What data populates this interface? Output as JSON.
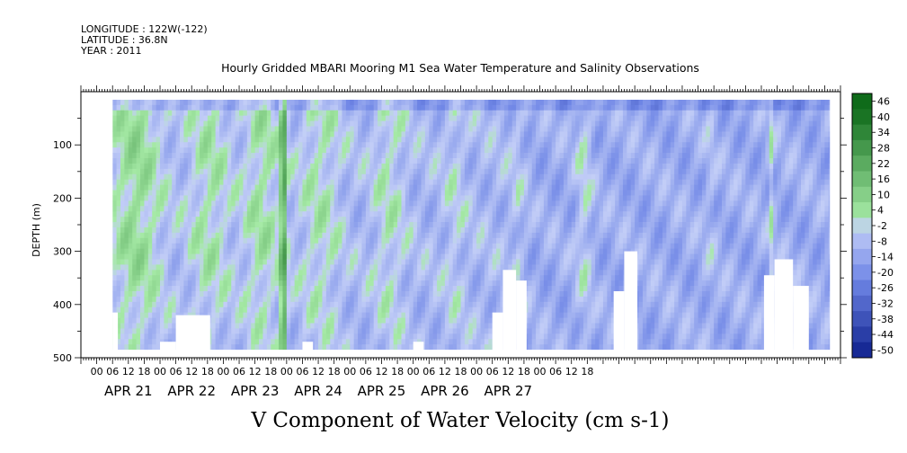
{
  "header": {
    "longitude": "LONGITUDE : 122W(-122)",
    "latitude": "LATITUDE : 36.8N",
    "year": "YEAR : 2011"
  },
  "chart_data": {
    "type": "heatmap",
    "title": "Hourly Gridded MBARI Mooring M1 Sea Water Temperature and Salinity Observations",
    "xlabel": "V Component of Water Velocity (cm s-1)",
    "ylabel": "DEPTH (m)",
    "ylim": [
      500,
      0
    ],
    "y_ticks": [
      100,
      200,
      300,
      400,
      500
    ],
    "x_range_hours": [
      -6,
      282
    ],
    "x_hour_labels": [
      "00",
      "06",
      "12",
      "18",
      "00",
      "06",
      "12",
      "18",
      "00",
      "06",
      "12",
      "18",
      "00",
      "06",
      "12",
      "18",
      "00",
      "06",
      "12",
      "18",
      "00",
      "06",
      "12",
      "18",
      "00",
      "06",
      "12",
      "18",
      "00",
      "06",
      "12",
      "18"
    ],
    "x_day_labels": [
      "APR 21",
      "APR 22",
      "APR 23",
      "APR 24",
      "APR 25",
      "APR 26",
      "APR 27"
    ],
    "colorbar": {
      "levels": [
        46,
        40,
        34,
        28,
        22,
        16,
        10,
        4,
        -2,
        -8,
        -14,
        -20,
        -26,
        -32,
        -38,
        -44,
        -50
      ],
      "range": [
        -50,
        50
      ]
    },
    "colors": {
      "strong_negative": "#0d1f8c",
      "negative": "#6f86e6",
      "near_zero": "#c3cef7",
      "positive": "#a6eaa6",
      "strong_positive": "#0f6b1a"
    }
  }
}
